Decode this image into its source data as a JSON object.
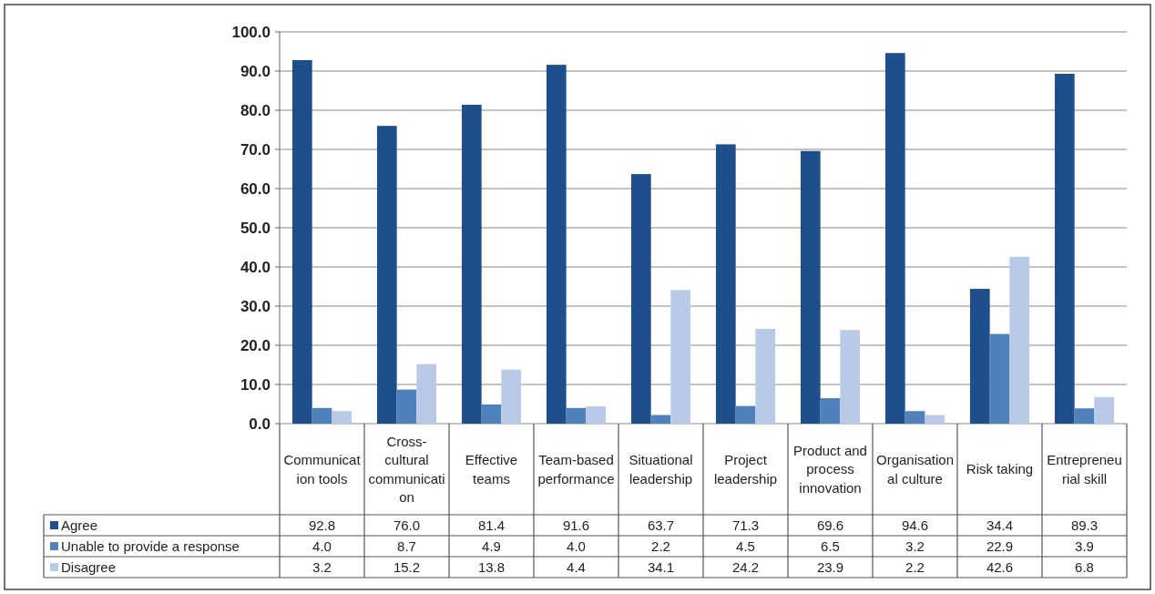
{
  "chart_data": {
    "type": "bar",
    "categories": [
      "Communication tools",
      "Cross-cultural communication",
      "Effective teams",
      "Team-based performance",
      "Situational leadership",
      "Project leadership",
      "Product and process innovation",
      "Organisational culture",
      "Risk taking",
      "Entrepreneurial skill"
    ],
    "series": [
      {
        "name": "Agree",
        "color": "#1f4e8c",
        "values": [
          92.8,
          76.0,
          81.4,
          91.6,
          63.7,
          71.3,
          69.6,
          94.6,
          34.4,
          89.3
        ],
        "value_labels": [
          "92.8",
          "76.0",
          "81.4",
          "91.6",
          "63.7",
          "71.3",
          "69.6",
          "94.6",
          "34.4",
          "89.3"
        ]
      },
      {
        "name": "Unable to provide a response",
        "color": "#4f81bd",
        "values": [
          4.0,
          8.7,
          4.9,
          4.0,
          2.2,
          4.5,
          6.5,
          3.2,
          22.9,
          3.9
        ],
        "value_labels": [
          "4.0",
          "8.7",
          "4.9",
          "4.0",
          "2.2",
          "4.5",
          "6.5",
          "3.2",
          "22.9",
          "3.9"
        ]
      },
      {
        "name": "Disagree",
        "color": "#b9c9e8",
        "values": [
          3.2,
          15.2,
          13.8,
          4.4,
          34.1,
          24.2,
          23.9,
          2.2,
          42.6,
          6.8
        ],
        "value_labels": [
          "3.2",
          "15.2",
          "13.8",
          "4.4",
          "34.1",
          "24.2",
          "23.9",
          "2.2",
          "42.6",
          "6.8"
        ]
      }
    ],
    "ylim": [
      0,
      100
    ],
    "yticks": [
      {
        "value": 0,
        "label": "0.0"
      },
      {
        "value": 10,
        "label": "10.0"
      },
      {
        "value": 20,
        "label": "20.0"
      },
      {
        "value": 30,
        "label": "30.0"
      },
      {
        "value": 40,
        "label": "40.0"
      },
      {
        "value": 50,
        "label": "50.0"
      },
      {
        "value": 60,
        "label": "60.0"
      },
      {
        "value": 70,
        "label": "70.0"
      },
      {
        "value": 80,
        "label": "80.0"
      },
      {
        "value": 90,
        "label": "90.0"
      },
      {
        "value": 100,
        "label": "100.0"
      }
    ],
    "grid": "y",
    "legend": "bottom left"
  }
}
